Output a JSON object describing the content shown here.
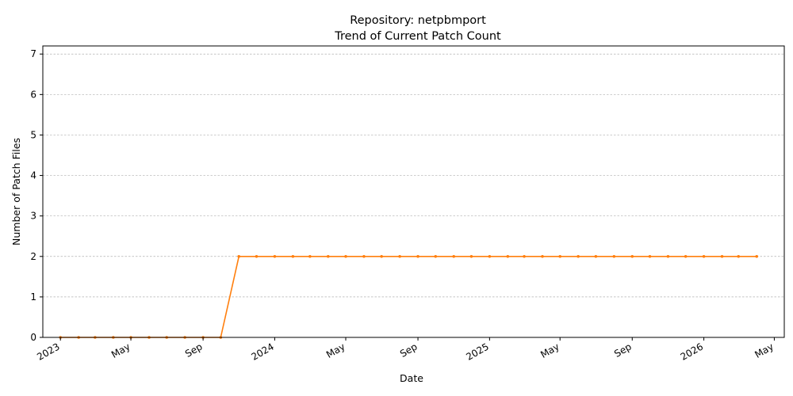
{
  "chart_data": {
    "type": "line",
    "title": "Repository: netpbmport",
    "subtitle": "Trend of Current Patch Count",
    "xlabel": "Date",
    "ylabel": "Number of Patch Files",
    "xlim": [
      "2022-12-02",
      "2026-05-18"
    ],
    "ylim": [
      0,
      7.2
    ],
    "yticks": [
      0,
      1,
      2,
      3,
      4,
      5,
      6,
      7
    ],
    "xticks": [
      {
        "date": "2023-01-01",
        "label": "2023"
      },
      {
        "date": "2023-05-01",
        "label": "May"
      },
      {
        "date": "2023-09-01",
        "label": "Sep"
      },
      {
        "date": "2024-01-01",
        "label": "2024"
      },
      {
        "date": "2024-05-01",
        "label": "May"
      },
      {
        "date": "2024-09-01",
        "label": "Sep"
      },
      {
        "date": "2025-01-01",
        "label": "2025"
      },
      {
        "date": "2025-05-01",
        "label": "May"
      },
      {
        "date": "2025-09-01",
        "label": "Sep"
      },
      {
        "date": "2026-01-01",
        "label": "2026"
      },
      {
        "date": "2026-05-01",
        "label": "May"
      }
    ],
    "grid": "y-dashed",
    "line_color": "#ff7f0e",
    "series": [
      {
        "x": [
          "2023-01-01",
          "2023-02-01",
          "2023-03-01",
          "2023-04-01",
          "2023-05-01",
          "2023-06-01",
          "2023-07-01",
          "2023-08-01",
          "2023-09-01",
          "2023-10-01",
          "2023-11-01",
          "2023-12-01",
          "2024-01-01",
          "2024-02-01",
          "2024-03-01",
          "2024-04-01",
          "2024-05-01",
          "2024-06-01",
          "2024-07-01",
          "2024-08-01",
          "2024-09-01",
          "2024-10-01",
          "2024-11-01",
          "2024-12-01",
          "2025-01-01",
          "2025-02-01",
          "2025-03-01",
          "2025-04-01",
          "2025-05-01",
          "2025-06-01",
          "2025-07-01",
          "2025-08-01",
          "2025-09-01",
          "2025-10-01",
          "2025-11-01",
          "2025-12-01",
          "2026-01-01",
          "2026-02-01",
          "2026-03-01",
          "2026-04-01"
        ],
        "values": [
          0,
          0,
          0,
          0,
          0,
          0,
          0,
          0,
          0,
          0,
          2,
          2,
          2,
          2,
          2,
          2,
          2,
          2,
          2,
          2,
          2,
          2,
          2,
          2,
          2,
          2,
          2,
          2,
          2,
          2,
          2,
          2,
          2,
          2,
          2,
          2,
          2,
          2,
          2,
          2
        ]
      }
    ]
  }
}
